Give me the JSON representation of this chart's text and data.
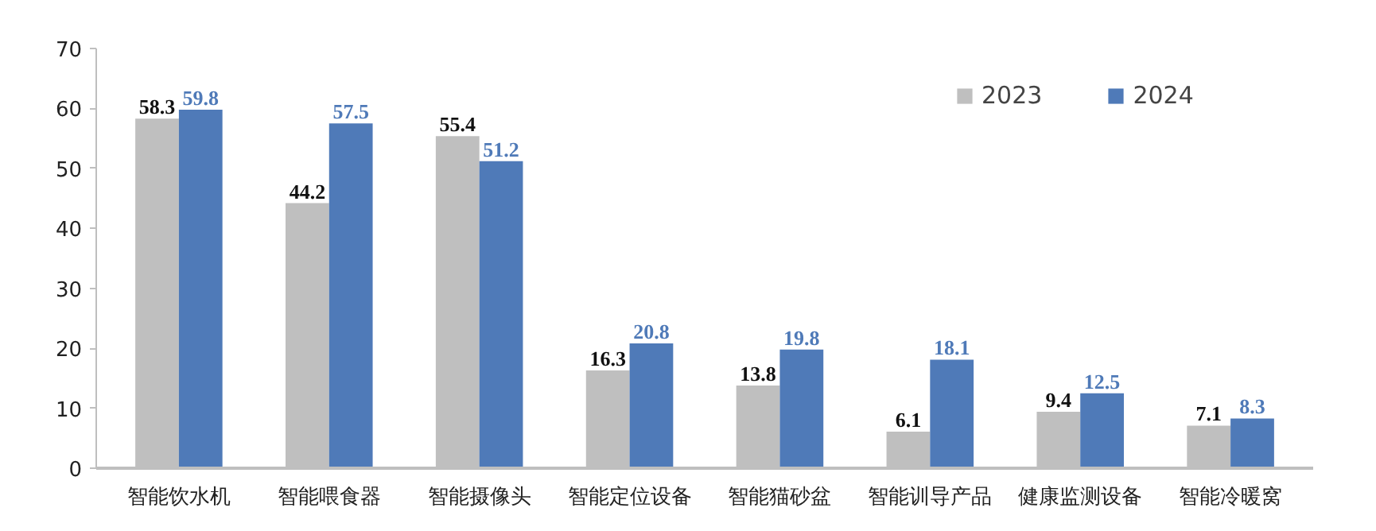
{
  "chart_data": {
    "type": "bar",
    "categories": [
      "智能饮水机",
      "智能喂食器",
      "智能摄像头",
      "智能定位设备",
      "智能猫砂盆",
      "智能训导产品",
      "健康监测设备",
      "智能冷暖窝"
    ],
    "series": [
      {
        "name": "2023",
        "color": "#bfbfbf",
        "values": [
          58.3,
          44.2,
          55.4,
          16.3,
          13.8,
          6.1,
          9.4,
          7.1
        ]
      },
      {
        "name": "2024",
        "color": "#4f7ab8",
        "values": [
          59.8,
          57.5,
          51.2,
          20.8,
          19.8,
          18.1,
          12.5,
          8.3
        ]
      }
    ],
    "ylim": [
      0,
      70
    ],
    "yticks": [
      0,
      10,
      20,
      30,
      40,
      50,
      60,
      70
    ],
    "data_labels": true,
    "grid": false,
    "legend": "top right"
  }
}
